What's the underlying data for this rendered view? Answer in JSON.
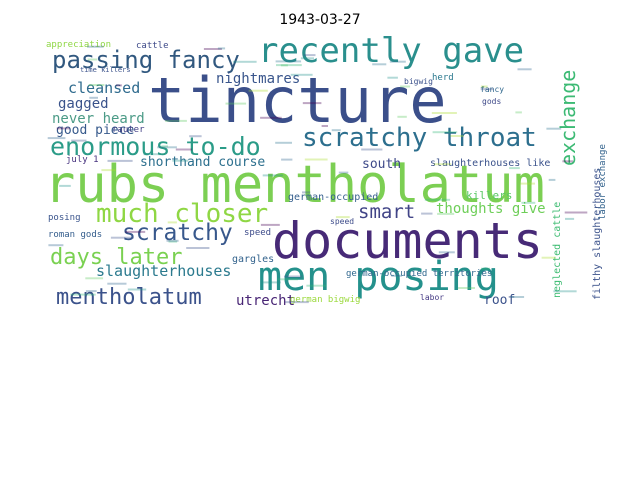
{
  "title": "1943-03-27",
  "words": [
    {
      "text": "tincture",
      "color": "#3b4f8a"
    },
    {
      "text": "rubs mentholatum",
      "color": "#7ccf53"
    },
    {
      "text": "documents",
      "color": "#472a77"
    },
    {
      "text": "men posing",
      "color": "#24918c"
    },
    {
      "text": "recently gave",
      "color": "#2a8f8d"
    },
    {
      "text": "passing fancy",
      "color": "#31587f"
    },
    {
      "text": "scratchy throat",
      "color": "#2d6f8e"
    },
    {
      "text": "enormous to-do",
      "color": "#2b9c88"
    },
    {
      "text": "much closer",
      "color": "#8fd744"
    },
    {
      "text": "scratchy",
      "color": "#38588c"
    },
    {
      "text": "mentholatum",
      "color": "#3b528b"
    },
    {
      "text": "days later",
      "color": "#7ad151"
    },
    {
      "text": "exchange",
      "color": "#3cba74"
    },
    {
      "text": "smart",
      "color": "#414487"
    },
    {
      "text": "slaughterhouses",
      "color": "#2b7a8e"
    },
    {
      "text": "cleansed",
      "color": "#2f6b8e"
    },
    {
      "text": "nightmares",
      "color": "#39558c"
    },
    {
      "text": "gagged",
      "color": "#3a538b"
    },
    {
      "text": "never heard",
      "color": "#4c9b87"
    },
    {
      "text": "good piece",
      "color": "#375a8c"
    },
    {
      "text": "shorthand course",
      "color": "#2d708e"
    },
    {
      "text": "thoughts give",
      "color": "#6ece58"
    },
    {
      "text": "south",
      "color": "#3e4989"
    },
    {
      "text": "utrecht",
      "color": "#482575"
    },
    {
      "text": "roof",
      "color": "#3b528b"
    },
    {
      "text": "killers",
      "color": "#5ac864"
    },
    {
      "text": "slaughterhouses like",
      "color": "#3b528b"
    },
    {
      "text": "filthy slaughterhouses",
      "color": "#3b528b"
    },
    {
      "text": "neglected cattle",
      "color": "#3fbc73"
    },
    {
      "text": "labor exchange",
      "color": "#33638d"
    },
    {
      "text": "german-occupied",
      "color": "#355f8d"
    },
    {
      "text": "german-occupied territories",
      "color": "#31688e"
    },
    {
      "text": "german bigwig",
      "color": "#9bd93c"
    },
    {
      "text": "posing",
      "color": "#3a548c"
    },
    {
      "text": "roman gods",
      "color": "#355e8d"
    },
    {
      "text": "gargles",
      "color": "#33638d"
    },
    {
      "text": "speed",
      "color": "#3e4c8a"
    },
    {
      "text": "appreciation",
      "color": "#8fd744"
    },
    {
      "text": "cattle",
      "color": "#3e4a89"
    },
    {
      "text": "herd",
      "color": "#2a788e"
    },
    {
      "text": "bigwig",
      "color": "#3b518b"
    },
    {
      "text": "gods",
      "color": "#3e4989"
    },
    {
      "text": "fancy",
      "color": "#31688e"
    },
    {
      "text": "rauter",
      "color": "#424086"
    },
    {
      "text": "july 1",
      "color": "#46327e"
    },
    {
      "text": "labor",
      "color": "#443983"
    },
    {
      "text": "time killers",
      "color": "#3b528b"
    },
    {
      "text": "speed",
      "color": "#3e4c8a"
    }
  ]
}
